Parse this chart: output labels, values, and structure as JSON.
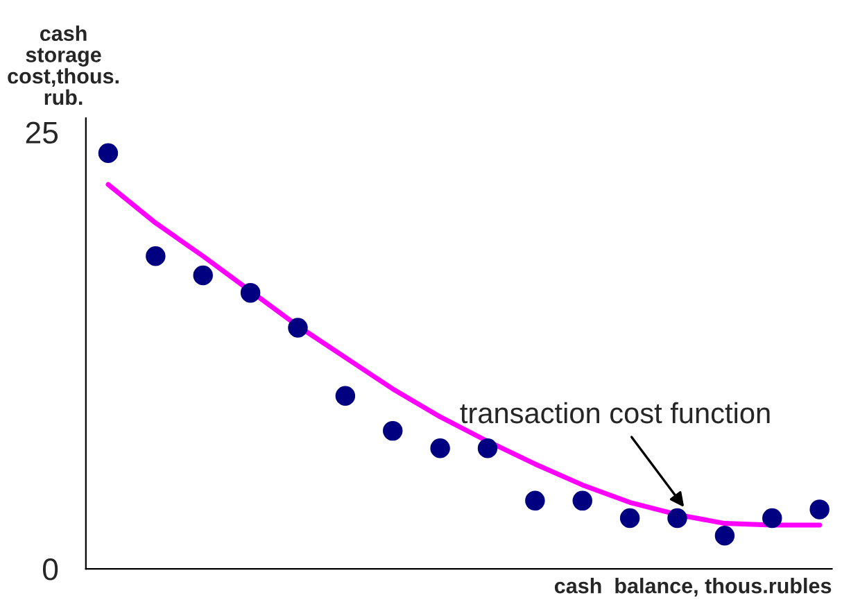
{
  "chart_data": {
    "type": "scatter",
    "ylabel": "cash\nstorage\ncost,thous.\nrub.",
    "xlabel": "cash  balance, thous.rubles",
    "categories": [
      null,
      null,
      null,
      null,
      null,
      null,
      null,
      null,
      null,
      null,
      null,
      null,
      null,
      null,
      null,
      null
    ],
    "series": [
      {
        "color": "#000080",
        "marker": "circle",
        "values": [
          23.8,
          17.9,
          16.8,
          15.8,
          13.8,
          9.9,
          7.9,
          6.9,
          6.9,
          3.9,
          3.9,
          2.9,
          2.9,
          1.9,
          2.9,
          3.4
        ]
      },
      {
        "type": "line",
        "color": "#ff00ff",
        "marker": "none",
        "values": [
          22.0,
          19.8,
          17.9,
          15.9,
          13.9,
          12.1,
          10.3,
          8.7,
          7.3,
          6.0,
          4.8,
          3.8,
          3.1,
          2.6,
          2.5,
          2.5
        ]
      }
    ],
    "ylim": [
      0,
      25.8
    ],
    "yticks": [
      0,
      25
    ],
    "grid": false,
    "annotations": [
      "transaction cost function"
    ]
  }
}
